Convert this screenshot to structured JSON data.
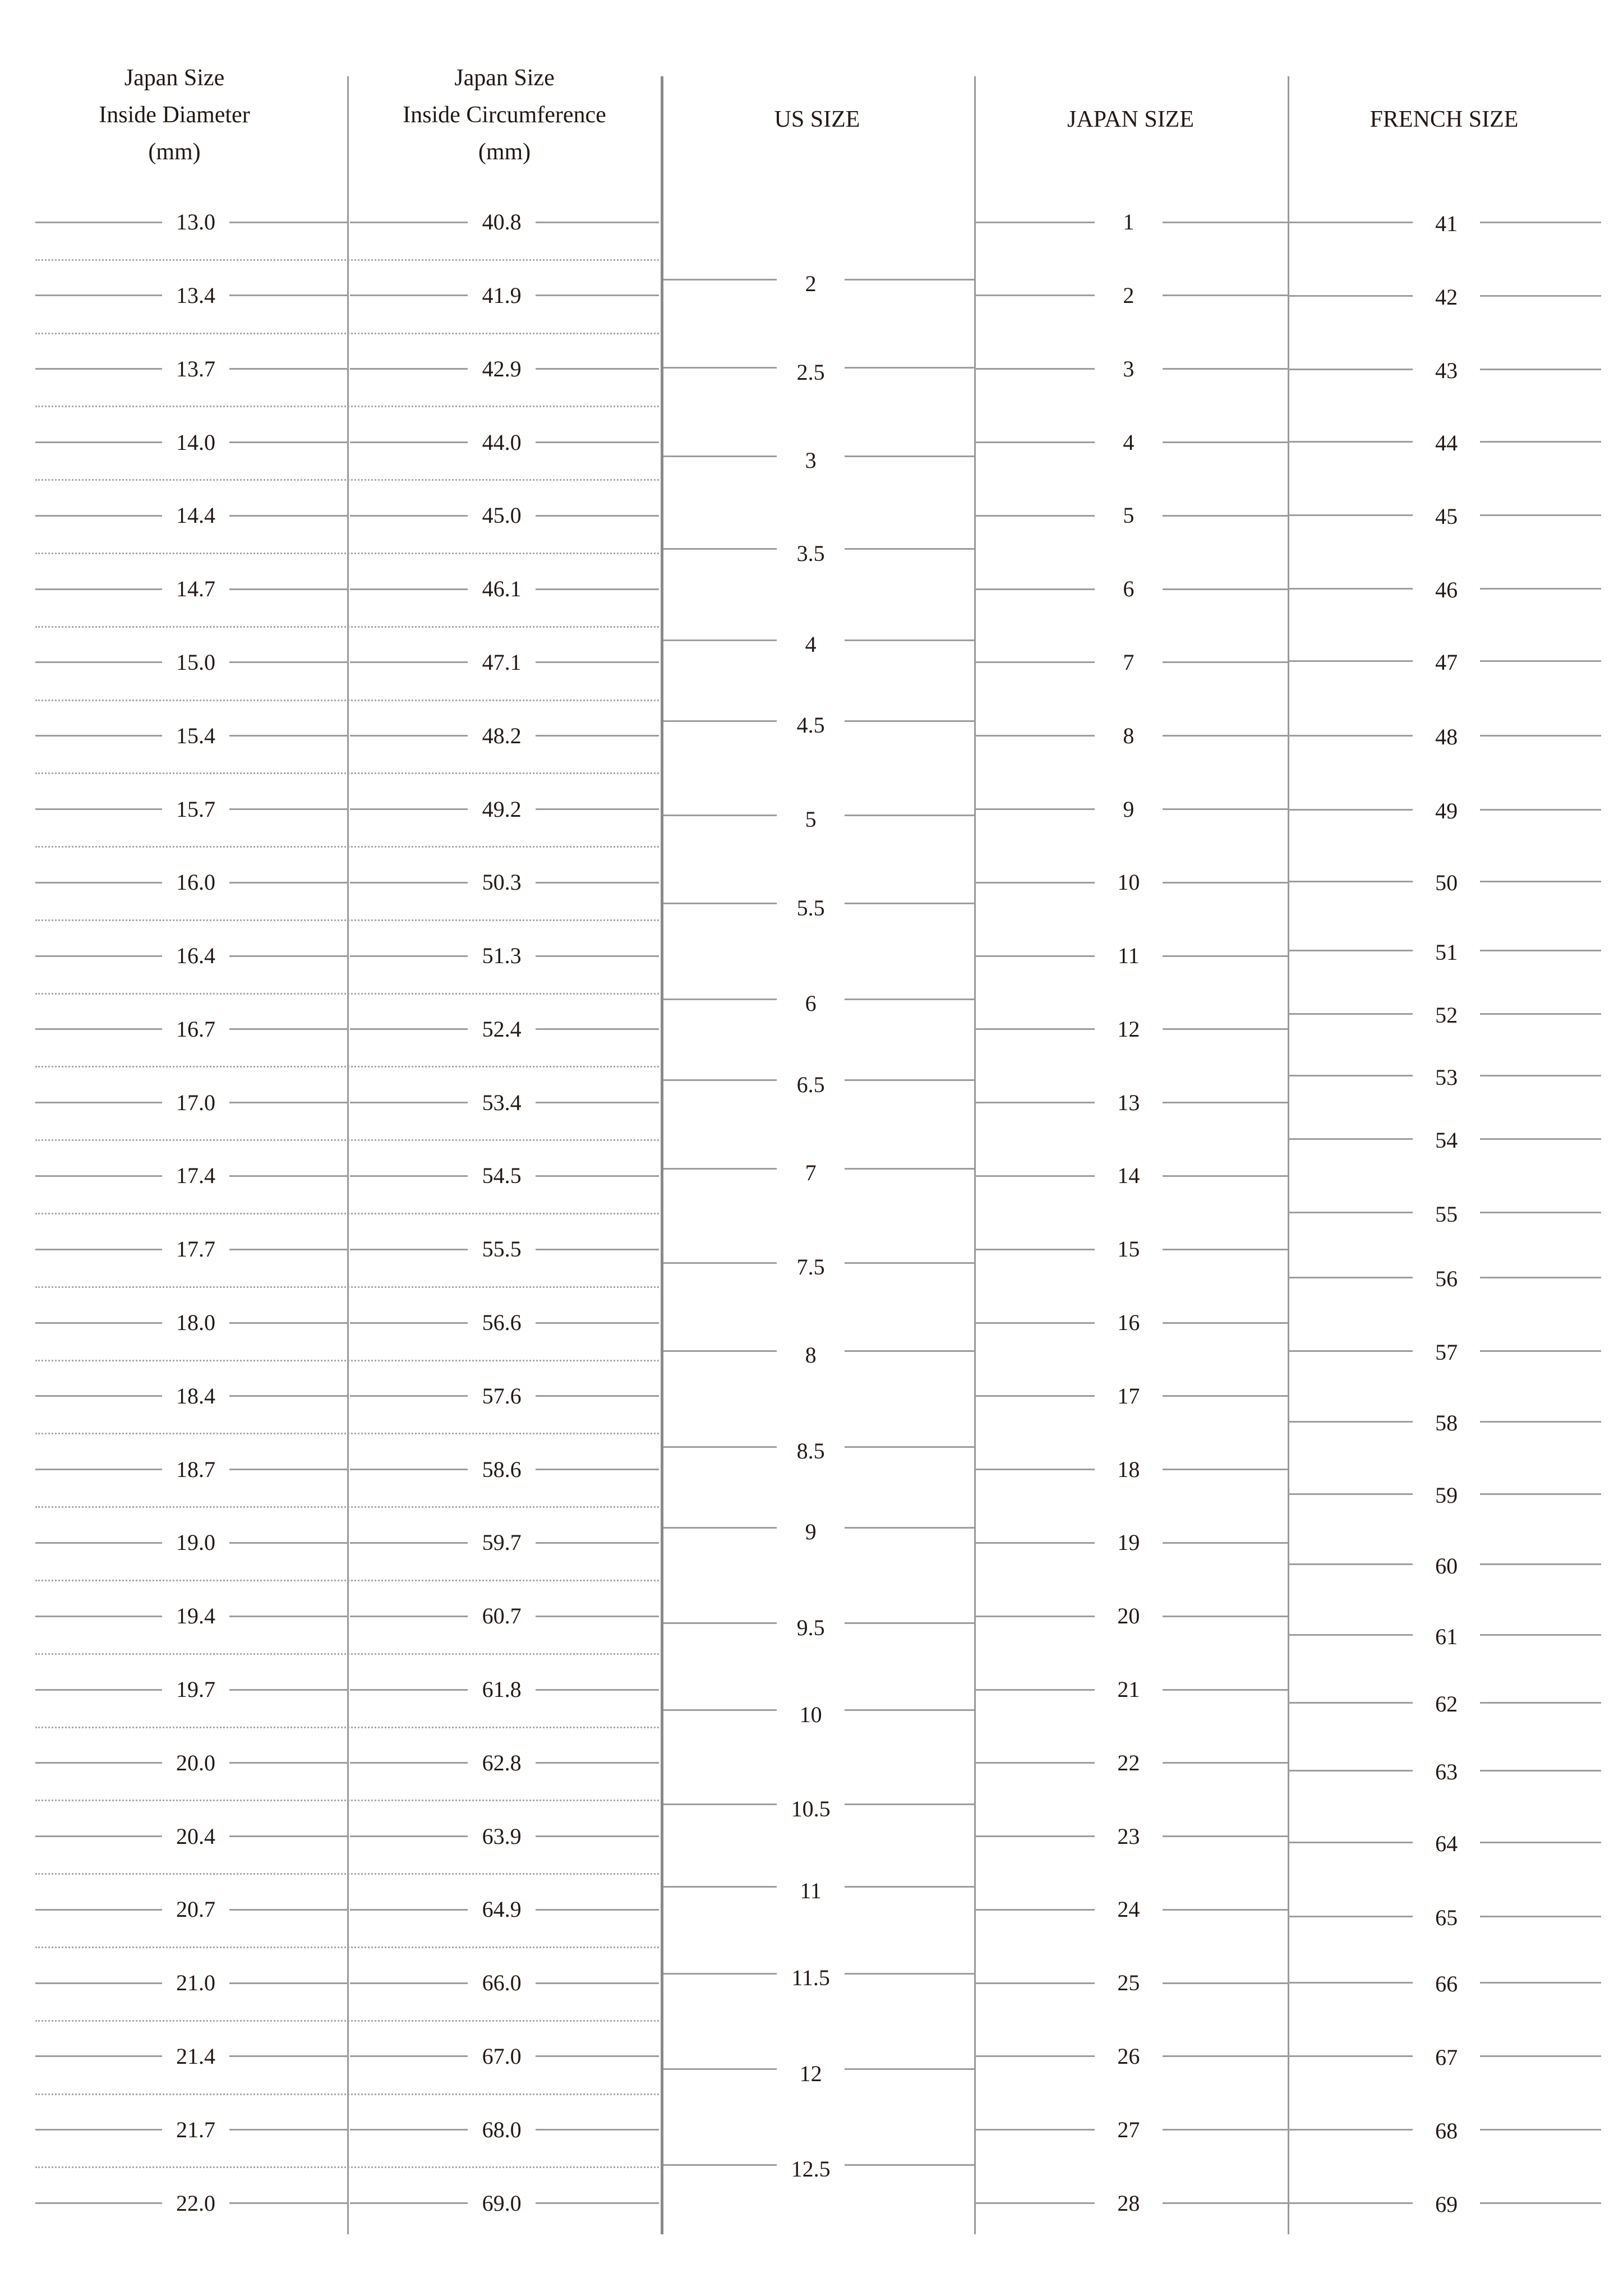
{
  "headers": {
    "inside_diameter": [
      "Japan Size",
      "Inside Diameter",
      "(mm)"
    ],
    "inside_circumference": [
      "Japan Size",
      "Inside Circumference",
      "(mm)"
    ],
    "us_size": "US SIZE",
    "japan_size": "JAPAN SIZE",
    "french_size": "FRENCH SIZE"
  },
  "inside_diameter_mm": [
    "13.0",
    "13.4",
    "13.7",
    "14.0",
    "14.4",
    "14.7",
    "15.0",
    "15.4",
    "15.7",
    "16.0",
    "16.4",
    "16.7",
    "17.0",
    "17.4",
    "17.7",
    "18.0",
    "18.4",
    "18.7",
    "19.0",
    "19.4",
    "19.7",
    "20.0",
    "20.4",
    "20.7",
    "21.0",
    "21.4",
    "21.7",
    "22.0"
  ],
  "inside_circumference_mm": [
    "40.8",
    "41.9",
    "42.9",
    "44.0",
    "45.0",
    "46.1",
    "47.1",
    "48.2",
    "49.2",
    "50.3",
    "51.3",
    "52.4",
    "53.4",
    "54.5",
    "55.5",
    "56.6",
    "57.6",
    "58.6",
    "59.7",
    "60.7",
    "61.8",
    "62.8",
    "63.9",
    "64.9",
    "66.0",
    "67.0",
    "68.0",
    "69.0"
  ],
  "us_sizes": [
    "2",
    "2.5",
    "3",
    "3.5",
    "4",
    "4.5",
    "5",
    "5.5",
    "6",
    "6.5",
    "7",
    "7.5",
    "8",
    "8.5",
    "9",
    "9.5",
    "10",
    "10.5",
    "11",
    "11.5",
    "12",
    "12.5"
  ],
  "japan_sizes": [
    "1",
    "2",
    "3",
    "4",
    "5",
    "6",
    "7",
    "8",
    "9",
    "10",
    "11",
    "12",
    "13",
    "14",
    "15",
    "16",
    "17",
    "18",
    "19",
    "20",
    "21",
    "22",
    "23",
    "24",
    "25",
    "26",
    "27",
    "28"
  ],
  "french_sizes": [
    "41",
    "42",
    "43",
    "44",
    "45",
    "46",
    "47",
    "48",
    "49",
    "50",
    "51",
    "52",
    "53",
    "54",
    "55",
    "56",
    "57",
    "58",
    "59",
    "60",
    "61",
    "62",
    "63",
    "64",
    "65",
    "66",
    "67",
    "68",
    "69"
  ]
}
